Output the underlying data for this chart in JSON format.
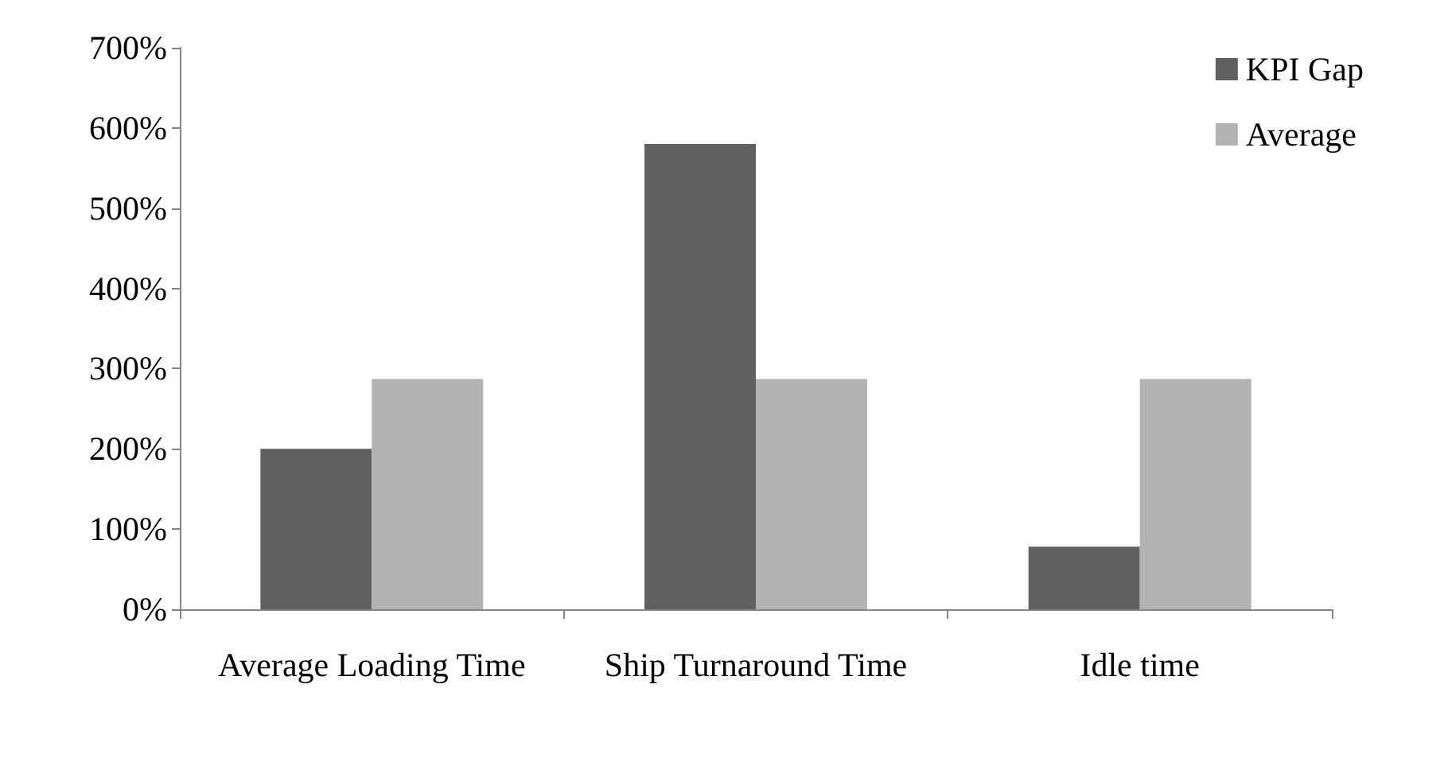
{
  "chart_data": {
    "type": "bar",
    "categories": [
      "Average Loading Time",
      "Ship Turnaround Time",
      "Idle time"
    ],
    "series": [
      {
        "name": "KPI Gap",
        "color": "#606060",
        "values": [
          200,
          580,
          78
        ]
      },
      {
        "name": "Average",
        "color": "#b3b3b3",
        "values": [
          287,
          287,
          287
        ]
      }
    ],
    "ylim": [
      0,
      700
    ],
    "yticks": [
      {
        "value": 0,
        "label": "0%"
      },
      {
        "value": 100,
        "label": "100%"
      },
      {
        "value": 200,
        "label": "200%"
      },
      {
        "value": 300,
        "label": "300%"
      },
      {
        "value": 400,
        "label": "400%"
      },
      {
        "value": 500,
        "label": "500%"
      },
      {
        "value": 600,
        "label": "600%"
      },
      {
        "value": 700,
        "label": "700%"
      }
    ],
    "grid": false,
    "legend": "top right"
  }
}
